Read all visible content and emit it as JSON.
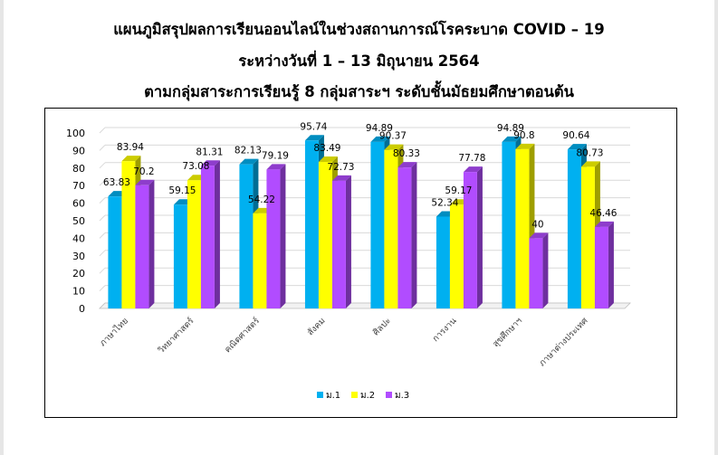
{
  "title": {
    "line1": "แผนภูมิสรุปผลการเรียนออนไลน์ในช่วงสถานการณ์โรคระบาด COVID – 19",
    "line2": "ระหว่างวันที่ 1 – 13 มิถุนายน  2564",
    "line3": "ตามกลุ่มสาระการเรียนรู้ 8 กลุ่มสาระฯ  ระดับชั้นมัธยมศึกษาตอนต้น"
  },
  "chart_data": {
    "type": "bar",
    "categories": [
      "ภาษาไทย",
      "วิทยาศาสตร์",
      "คณิตศาสตร์",
      "สังคม",
      "ศิลปะ",
      "การงาน",
      "สุขศึกษาฯ",
      "ภาษาต่างประเทศ"
    ],
    "series": [
      {
        "name": "ม.1",
        "color": "#00b0f0",
        "values": [
          63.83,
          59.15,
          82.13,
          95.74,
          94.89,
          52.34,
          94.89,
          90.64
        ]
      },
      {
        "name": "ม.2",
        "color": "#ffff00",
        "values": [
          83.94,
          73.08,
          54.22,
          83.49,
          90.37,
          59.17,
          90.8,
          80.73
        ]
      },
      {
        "name": "ม.3",
        "color": "#b14cff",
        "values": [
          70.2,
          81.31,
          79.19,
          72.73,
          80.33,
          77.78,
          40,
          46.46
        ]
      }
    ],
    "ylim": [
      0,
      100
    ],
    "yticks": [
      0,
      10,
      20,
      30,
      40,
      50,
      60,
      70,
      80,
      90,
      100
    ],
    "grid": true,
    "legend_position": "bottom",
    "style": "3d-clustered-column",
    "data_labels": true
  }
}
